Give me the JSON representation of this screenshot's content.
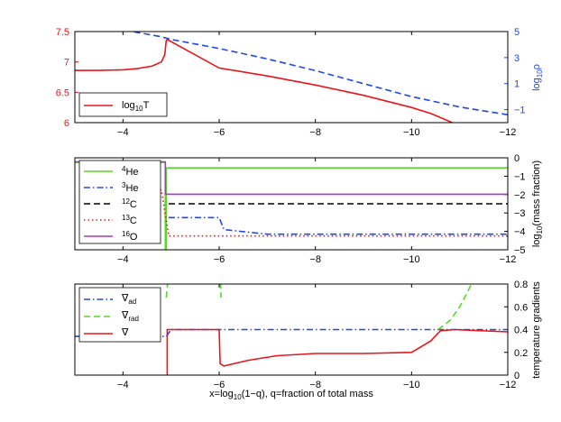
{
  "colors": {
    "red": "#e8161b",
    "blue": "#1f48e6",
    "green": "#5ad62a",
    "black": "#000000",
    "purple": "#b133cc"
  },
  "chart_data": [
    {
      "type": "line",
      "x_ticks": [
        "−4",
        "−6",
        "−8",
        "−10",
        "−12"
      ],
      "x_tick_values": [
        -4,
        -6,
        -8,
        -10,
        -12
      ],
      "xlim": [
        -3,
        -12
      ],
      "ylim_left": [
        6,
        7.5
      ],
      "left_ticks": [
        "6",
        "6.5",
        "7",
        "7.5"
      ],
      "left_tick_values": [
        6,
        6.5,
        7,
        7.5
      ],
      "ylim_right": [
        -2,
        5
      ],
      "right_ticks": [
        "−1",
        "1",
        "3",
        "5"
      ],
      "right_tick_values": [
        -1,
        1,
        3,
        5
      ],
      "right_label_main": "log",
      "right_label_sub": "10",
      "right_label_tail": "ρ",
      "legend_placement": "bottom-left",
      "series": [
        {
          "label_main": "log",
          "label_sub": "10",
          "label_tail": "T",
          "color": "red",
          "dash": "solid",
          "axis": "left",
          "x": [
            -3,
            -3.5,
            -4,
            -4.3,
            -4.6,
            -4.8,
            -4.87,
            -4.9,
            -4.92,
            -6,
            -7,
            -8,
            -9,
            -10,
            -10.4,
            -10.7,
            -10.9,
            -12
          ],
          "y": [
            6.86,
            6.86,
            6.87,
            6.89,
            6.93,
            7.0,
            7.12,
            7.35,
            7.37,
            6.9,
            6.77,
            6.62,
            6.45,
            6.25,
            6.15,
            6.05,
            5.98,
            5.98
          ]
        },
        {
          "label_main": "",
          "label_sub": "",
          "label_tail": "",
          "color": "blue",
          "dash": "dashed",
          "axis": "right",
          "x": [
            -3,
            -4.2,
            -4.8,
            -5,
            -6,
            -7,
            -8,
            -9,
            -10,
            -11,
            -12
          ],
          "y": [
            5.5,
            5.0,
            4.6,
            4.4,
            3.7,
            2.9,
            2.0,
            1.0,
            0.0,
            -0.8,
            -1.4
          ]
        }
      ]
    },
    {
      "type": "line",
      "x_ticks": [
        "−4",
        "−6",
        "−8",
        "−10",
        "−12"
      ],
      "x_tick_values": [
        -4,
        -6,
        -8,
        -10,
        -12
      ],
      "xlim": [
        -3,
        -12
      ],
      "ylim_right": [
        -5,
        0
      ],
      "right_ticks": [
        "−5",
        "−4",
        "−3",
        "−2",
        "−1",
        "0"
      ],
      "right_tick_values": [
        -5,
        -4,
        -3,
        -2,
        -1,
        0
      ],
      "right_label_main": "log",
      "right_label_sub": "10",
      "right_label_tail": "(mass fraction)",
      "legend_placement": "left",
      "series": [
        {
          "label_sup": "4",
          "label_tail": "He",
          "color": "green",
          "dash": "solid",
          "x": [
            -3,
            -4.88,
            -4.88,
            -4.9,
            -4.9,
            -12
          ],
          "y": [
            -0.25,
            -0.25,
            -5.0,
            -5.0,
            -0.55,
            -0.55
          ]
        },
        {
          "label_sup": "3",
          "label_tail": "He",
          "color": "blue",
          "dash": "dashdot",
          "x": [
            -4.95,
            -5.0,
            -5.9,
            -6.0,
            -6.1,
            -7,
            -12
          ],
          "y": [
            -3.25,
            -3.25,
            -3.25,
            -3.25,
            -3.9,
            -4.15,
            -4.15
          ]
        },
        {
          "label_sup": "12",
          "label_tail": "C",
          "color": "black",
          "dash": "dashed",
          "x": [
            -4.95,
            -12
          ],
          "y": [
            -2.5,
            -2.5
          ]
        },
        {
          "label_sup": "13",
          "label_tail": "C",
          "color": "red",
          "dash": "dotted",
          "x": [
            -4.6,
            -4.8,
            -4.95,
            -12
          ],
          "y": [
            -1.75,
            -1.75,
            -4.25,
            -4.25
          ]
        },
        {
          "label_sup": "16",
          "label_tail": "O",
          "color": "purple",
          "dash": "solid",
          "x": [
            -3,
            -4.88,
            -4.88,
            -12
          ],
          "y": [
            -0.22,
            -0.22,
            -1.98,
            -1.98
          ]
        }
      ]
    },
    {
      "type": "line",
      "x_ticks": [
        "−4",
        "−6",
        "−8",
        "−10",
        "−12"
      ],
      "x_tick_values": [
        -4,
        -6,
        -8,
        -10,
        -12
      ],
      "xlim": [
        -3,
        -12
      ],
      "ylim_right": [
        0,
        0.8
      ],
      "right_ticks": [
        "0",
        "0.2",
        "0.4",
        "0.6",
        "0.8"
      ],
      "right_tick_values": [
        0,
        0.2,
        0.4,
        0.6,
        0.8
      ],
      "right_label": "temperature gradients",
      "xlabel_pre": "x=log",
      "xlabel_sub": "10",
      "xlabel_post": "(1−q), q=fraction of total mass",
      "legend_placement": "left",
      "series": [
        {
          "label_sym": "∇",
          "label_sub": "ad",
          "color": "blue",
          "dash": "dashdot",
          "x": [
            -3,
            -4.9,
            -5,
            -12
          ],
          "y": [
            0.34,
            0.34,
            0.4,
            0.4
          ]
        },
        {
          "label_sym": "∇",
          "label_sub": "rad",
          "color": "green",
          "dash": "dashed",
          "segments": [
            {
              "x": [
                -4.9,
                -4.95
              ],
              "y": [
                0.68,
                0.9
              ]
            },
            {
              "x": [
                -6.02,
                -6.04
              ],
              "y": [
                0.9,
                0.68
              ]
            },
            {
              "x": [
                -10.55,
                -10.8,
                -11,
                -11.15,
                -11.3
              ],
              "y": [
                0.4,
                0.48,
                0.6,
                0.72,
                0.85
              ]
            }
          ]
        },
        {
          "label_sym": "∇",
          "label_sub": "",
          "color": "red",
          "dash": "solid",
          "x": [
            -4.92,
            -4.92,
            -6.0,
            -6.02,
            -6.1,
            -6.6,
            -7.2,
            -8,
            -9,
            -10,
            -10.4,
            -10.6,
            -10.9,
            -12
          ],
          "y": [
            0.0,
            0.4,
            0.4,
            0.1,
            0.08,
            0.13,
            0.17,
            0.19,
            0.19,
            0.2,
            0.3,
            0.39,
            0.4,
            0.38
          ]
        }
      ]
    }
  ]
}
